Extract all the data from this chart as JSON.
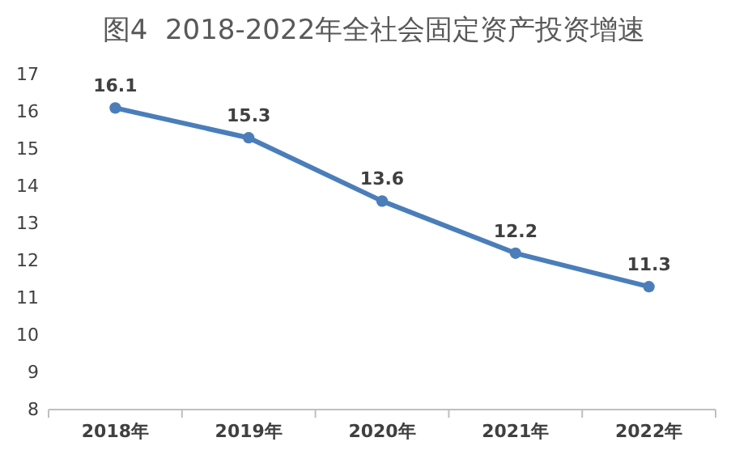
{
  "chart_data": {
    "type": "line",
    "title": "图4  2018-2022年全社会固定资产投资增速",
    "categories": [
      "2018年",
      "2019年",
      "2020年",
      "2021年",
      "2022年"
    ],
    "series": [
      {
        "color": "#4a7ebb",
        "values": [
          16.1,
          15.3,
          13.6,
          12.2,
          11.3
        ]
      }
    ],
    "ylim": [
      8,
      17
    ],
    "yticks": [
      8,
      9,
      10,
      11,
      12,
      13,
      14,
      15,
      16,
      17
    ],
    "data_labels": true,
    "marker": "circle",
    "grid": false
  }
}
